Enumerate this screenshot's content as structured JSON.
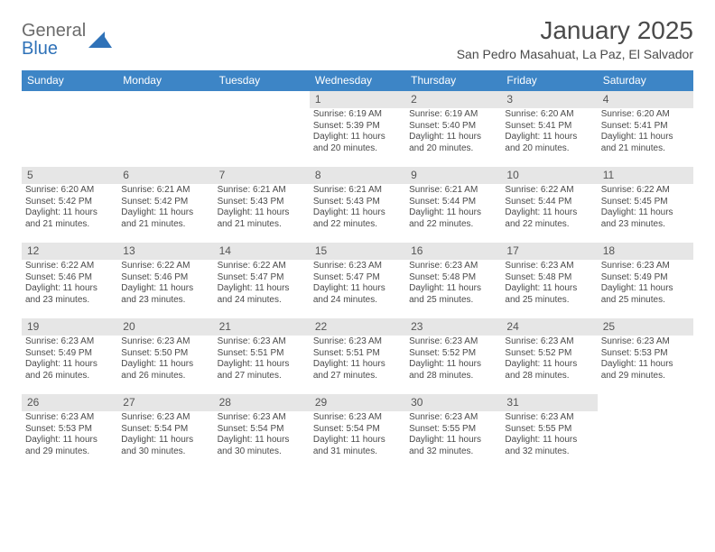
{
  "brand": {
    "top": "General",
    "bottom": "Blue",
    "mark_color": "#2f72b8"
  },
  "title": "January 2025",
  "location": "San Pedro Masahuat, La Paz, El Salvador",
  "colors": {
    "header_bg": "#3d85c6",
    "header_text": "#ffffff",
    "daynum_bg": "#e6e6e6",
    "row_divider": "#3d85c6",
    "body_text": "#4a4a4a",
    "logo_gray": "#6b6b6b"
  },
  "typography": {
    "title_fontsize": 28,
    "location_fontsize": 14,
    "weekday_fontsize": 12,
    "daynum_fontsize": 12,
    "body_fontsize": 10
  },
  "weekdays": [
    "Sunday",
    "Monday",
    "Tuesday",
    "Wednesday",
    "Thursday",
    "Friday",
    "Saturday"
  ],
  "weeks": [
    [
      null,
      null,
      null,
      {
        "n": "1",
        "sr": "6:19 AM",
        "ss": "5:39 PM",
        "dl": "11 hours and 20 minutes."
      },
      {
        "n": "2",
        "sr": "6:19 AM",
        "ss": "5:40 PM",
        "dl": "11 hours and 20 minutes."
      },
      {
        "n": "3",
        "sr": "6:20 AM",
        "ss": "5:41 PM",
        "dl": "11 hours and 20 minutes."
      },
      {
        "n": "4",
        "sr": "6:20 AM",
        "ss": "5:41 PM",
        "dl": "11 hours and 21 minutes."
      }
    ],
    [
      {
        "n": "5",
        "sr": "6:20 AM",
        "ss": "5:42 PM",
        "dl": "11 hours and 21 minutes."
      },
      {
        "n": "6",
        "sr": "6:21 AM",
        "ss": "5:42 PM",
        "dl": "11 hours and 21 minutes."
      },
      {
        "n": "7",
        "sr": "6:21 AM",
        "ss": "5:43 PM",
        "dl": "11 hours and 21 minutes."
      },
      {
        "n": "8",
        "sr": "6:21 AM",
        "ss": "5:43 PM",
        "dl": "11 hours and 22 minutes."
      },
      {
        "n": "9",
        "sr": "6:21 AM",
        "ss": "5:44 PM",
        "dl": "11 hours and 22 minutes."
      },
      {
        "n": "10",
        "sr": "6:22 AM",
        "ss": "5:44 PM",
        "dl": "11 hours and 22 minutes."
      },
      {
        "n": "11",
        "sr": "6:22 AM",
        "ss": "5:45 PM",
        "dl": "11 hours and 23 minutes."
      }
    ],
    [
      {
        "n": "12",
        "sr": "6:22 AM",
        "ss": "5:46 PM",
        "dl": "11 hours and 23 minutes."
      },
      {
        "n": "13",
        "sr": "6:22 AM",
        "ss": "5:46 PM",
        "dl": "11 hours and 23 minutes."
      },
      {
        "n": "14",
        "sr": "6:22 AM",
        "ss": "5:47 PM",
        "dl": "11 hours and 24 minutes."
      },
      {
        "n": "15",
        "sr": "6:23 AM",
        "ss": "5:47 PM",
        "dl": "11 hours and 24 minutes."
      },
      {
        "n": "16",
        "sr": "6:23 AM",
        "ss": "5:48 PM",
        "dl": "11 hours and 25 minutes."
      },
      {
        "n": "17",
        "sr": "6:23 AM",
        "ss": "5:48 PM",
        "dl": "11 hours and 25 minutes."
      },
      {
        "n": "18",
        "sr": "6:23 AM",
        "ss": "5:49 PM",
        "dl": "11 hours and 25 minutes."
      }
    ],
    [
      {
        "n": "19",
        "sr": "6:23 AM",
        "ss": "5:49 PM",
        "dl": "11 hours and 26 minutes."
      },
      {
        "n": "20",
        "sr": "6:23 AM",
        "ss": "5:50 PM",
        "dl": "11 hours and 26 minutes."
      },
      {
        "n": "21",
        "sr": "6:23 AM",
        "ss": "5:51 PM",
        "dl": "11 hours and 27 minutes."
      },
      {
        "n": "22",
        "sr": "6:23 AM",
        "ss": "5:51 PM",
        "dl": "11 hours and 27 minutes."
      },
      {
        "n": "23",
        "sr": "6:23 AM",
        "ss": "5:52 PM",
        "dl": "11 hours and 28 minutes."
      },
      {
        "n": "24",
        "sr": "6:23 AM",
        "ss": "5:52 PM",
        "dl": "11 hours and 28 minutes."
      },
      {
        "n": "25",
        "sr": "6:23 AM",
        "ss": "5:53 PM",
        "dl": "11 hours and 29 minutes."
      }
    ],
    [
      {
        "n": "26",
        "sr": "6:23 AM",
        "ss": "5:53 PM",
        "dl": "11 hours and 29 minutes."
      },
      {
        "n": "27",
        "sr": "6:23 AM",
        "ss": "5:54 PM",
        "dl": "11 hours and 30 minutes."
      },
      {
        "n": "28",
        "sr": "6:23 AM",
        "ss": "5:54 PM",
        "dl": "11 hours and 30 minutes."
      },
      {
        "n": "29",
        "sr": "6:23 AM",
        "ss": "5:54 PM",
        "dl": "11 hours and 31 minutes."
      },
      {
        "n": "30",
        "sr": "6:23 AM",
        "ss": "5:55 PM",
        "dl": "11 hours and 32 minutes."
      },
      {
        "n": "31",
        "sr": "6:23 AM",
        "ss": "5:55 PM",
        "dl": "11 hours and 32 minutes."
      },
      null
    ]
  ],
  "labels": {
    "sunrise": "Sunrise:",
    "sunset": "Sunset:",
    "daylight": "Daylight:"
  }
}
